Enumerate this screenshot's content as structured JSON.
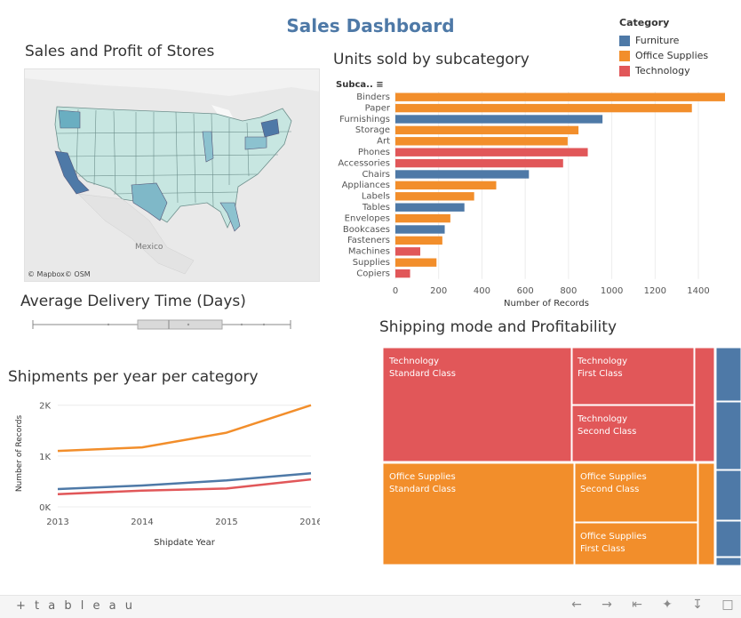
{
  "dashboard": {
    "title": "Sales Dashboard"
  },
  "colors": {
    "furniture": "#4e79a7",
    "office": "#f28e2b",
    "technology": "#e15759",
    "title": "#4e79a7"
  },
  "legend": {
    "title": "Category",
    "items": [
      {
        "label": "Furniture",
        "color": "#4e79a7"
      },
      {
        "label": "Office Supplies",
        "color": "#f28e2b"
      },
      {
        "label": "Technology",
        "color": "#e15759"
      }
    ]
  },
  "map": {
    "title": "Sales and Profit of Stores",
    "credit": "© Mapbox© OSM",
    "place_label": "Mexico"
  },
  "delivery": {
    "title": "Average Delivery Time (Days)"
  },
  "units_chart": {
    "title": "Units sold by subcategory",
    "header": "Subca..",
    "xlabel": "Number of Records"
  },
  "shipments": {
    "title": "Shipments per year per category"
  },
  "treemap": {
    "title": "Shipping mode and Profitability",
    "tiles": [
      {
        "l1": "Technology",
        "l2": "Standard Class",
        "cat": "technology"
      },
      {
        "l1": "Technology",
        "l2": "First Class",
        "cat": "technology"
      },
      {
        "l1": "Technology",
        "l2": "Second Class",
        "cat": "technology"
      },
      {
        "l1": "Office Supplies",
        "l2": "Standard Class",
        "cat": "office"
      },
      {
        "l1": "Office Supplies",
        "l2": "Second Class",
        "cat": "office"
      },
      {
        "l1": "Office Supplies",
        "l2": "First Class",
        "cat": "office"
      }
    ]
  },
  "footer": {
    "logo": "+ t a b l e a u"
  },
  "chart_data": [
    {
      "type": "bar",
      "title": "Units sold by subcategory",
      "xlabel": "Number of Records",
      "categories": [
        "Binders",
        "Paper",
        "Furnishings",
        "Storage",
        "Art",
        "Phones",
        "Accessories",
        "Chairs",
        "Appliances",
        "Labels",
        "Tables",
        "Envelopes",
        "Bookcases",
        "Fasteners",
        "Machines",
        "Supplies",
        "Copiers"
      ],
      "category_group": [
        "office",
        "office",
        "furniture",
        "office",
        "office",
        "technology",
        "technology",
        "furniture",
        "office",
        "office",
        "furniture",
        "office",
        "furniture",
        "office",
        "technology",
        "office",
        "technology"
      ],
      "values": [
        1523,
        1370,
        957,
        846,
        796,
        889,
        775,
        617,
        466,
        364,
        319,
        254,
        228,
        217,
        115,
        190,
        68
      ],
      "xticks": [
        0,
        200,
        400,
        600,
        800,
        1000,
        1200,
        1400
      ],
      "xlim": [
        0,
        1560
      ]
    },
    {
      "type": "line",
      "title": "Shipments per year per category",
      "xlabel": "Shipdate Year",
      "ylabel": "Number of Records",
      "x": [
        "2013",
        "2014",
        "2015",
        "2016"
      ],
      "yticks": [
        "0K",
        "1K",
        "2K"
      ],
      "ytick_values": [
        0,
        1000,
        2000
      ],
      "ylim": [
        0,
        2100
      ],
      "series": [
        {
          "name": "Office Supplies",
          "color": "#f28e2b",
          "values": [
            1100,
            1170,
            1460,
            2000
          ]
        },
        {
          "name": "Furniture",
          "color": "#4e79a7",
          "values": [
            350,
            420,
            520,
            660
          ]
        },
        {
          "name": "Technology",
          "color": "#e15759",
          "values": [
            250,
            320,
            360,
            540
          ]
        }
      ]
    },
    {
      "type": "treemap",
      "title": "Shipping mode and Profitability"
    }
  ]
}
